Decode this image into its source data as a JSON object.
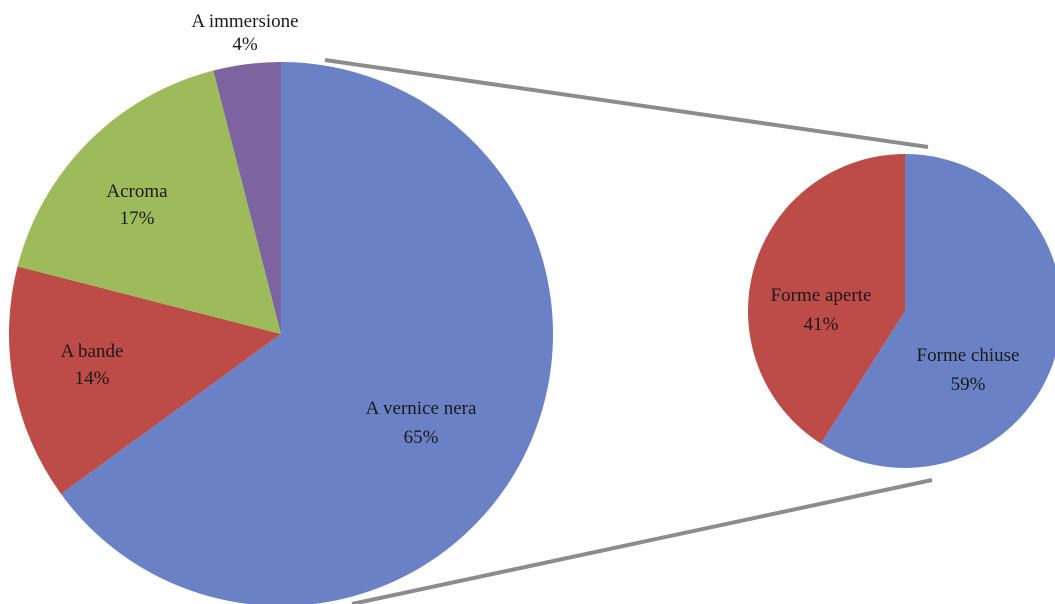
{
  "chart_data": [
    {
      "type": "pie",
      "categories": [
        "A vernice nera",
        "A bande",
        "Acroma",
        "A immersione"
      ],
      "values": [
        65,
        14,
        17,
        4
      ],
      "data_labels": [
        "65%",
        "14%",
        "17%",
        "4%"
      ],
      "colors": [
        "#6a81c6",
        "#bd4b48",
        "#9dbb5a",
        "#7d64a1"
      ],
      "legend": "none"
    },
    {
      "type": "pie",
      "categories": [
        "Forme chiuse",
        "Forme aperte"
      ],
      "values": [
        59,
        41
      ],
      "data_labels": [
        "59%",
        "41%"
      ],
      "colors": [
        "#6a81c6",
        "#bd4b48"
      ],
      "legend": "none"
    }
  ]
}
